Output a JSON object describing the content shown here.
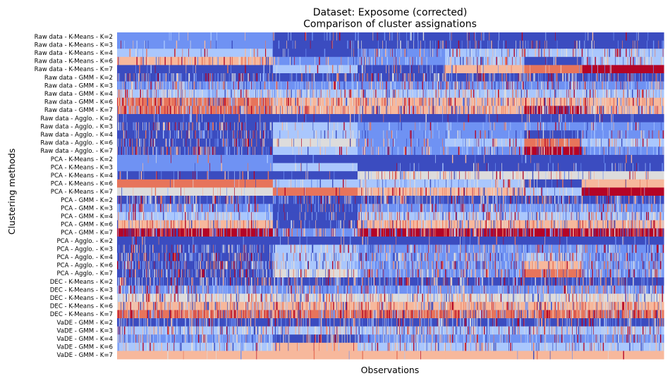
{
  "chart_data": {
    "type": "heatmap",
    "title": "Dataset: Exposome (corrected)",
    "subtitle": "Comparison of cluster assignations",
    "xlabel": "Observations",
    "ylabel": "Clustering methods",
    "colormap": "coolwarm",
    "colors": [
      "#3b4cc0",
      "#6f92f3",
      "#aac7fd",
      "#dddcdc",
      "#f7b89c",
      "#e7745b",
      "#b40426"
    ],
    "row_labels": [
      "Raw data - K-Means - K=2",
      "Raw data - K-Means - K=3",
      "Raw data - K-Means - K=4",
      "Raw data - K-Means - K=6",
      "Raw data - K-Means - K=7",
      "Raw data - GMM - K=2",
      "Raw data - GMM - K=3",
      "Raw data - GMM - K=4",
      "Raw data - GMM - K=6",
      "Raw data - GMM - K=7",
      "Raw data - Agglo. - K=2",
      "Raw data - Agglo. - K=3",
      "Raw data - Agglo. - K=4",
      "Raw data - Agglo. - K=6",
      "Raw data - Agglo. - K=7",
      "PCA - K-Means - K=2",
      "PCA - K-Means - K=3",
      "PCA - K-Means - K=4",
      "PCA - K-Means - K=6",
      "PCA - K-Means - K=7",
      "PCA - GMM - K=2",
      "PCA - GMM - K=3",
      "PCA - GMM - K=4",
      "PCA - GMM - K=6",
      "PCA - GMM - K=7",
      "PCA - Agglo. - K=2",
      "PCA - Agglo. - K=3",
      "PCA - Agglo. - K=4",
      "PCA - Agglo. - K=6",
      "PCA - Agglo. - K=7",
      "DEC - K-Means - K=2",
      "DEC - K-Means - K=3",
      "DEC - K-Means - K=4",
      "DEC - K-Means - K=6",
      "DEC - K-Means - K=7",
      "VaDE - GMM - K=2",
      "VaDE - GMM - K=3",
      "VaDE - GMM - K=4",
      "VaDE - GMM - K=6",
      "VaDE - GMM - K=7"
    ],
    "segment_bounds": [
      0,
      0.285,
      0.44,
      0.6,
      0.745,
      0.85,
      1.0
    ],
    "row_segments": [
      [
        [
          1,
          0.05
        ],
        [
          0,
          0.15
        ],
        [
          0,
          0.1
        ],
        [
          0,
          0.1
        ],
        [
          0,
          0.1
        ],
        [
          0,
          0.1
        ]
      ],
      [
        [
          1,
          0.05
        ],
        [
          0,
          0.1
        ],
        [
          0,
          0.2
        ],
        [
          0,
          0.2
        ],
        [
          0,
          0.2
        ],
        [
          0,
          0.2
        ]
      ],
      [
        [
          2,
          0.1
        ],
        [
          0,
          0.1
        ],
        [
          1,
          0.3
        ],
        [
          2,
          0.35
        ],
        [
          2,
          0.3
        ],
        [
          2,
          0.35
        ]
      ],
      [
        [
          4,
          0.3
        ],
        [
          1,
          0.2
        ],
        [
          1,
          0.3
        ],
        [
          2,
          0.3
        ],
        [
          0,
          0.1
        ],
        [
          2,
          0.35
        ]
      ],
      [
        [
          0,
          0.08
        ],
        [
          2,
          0.15
        ],
        [
          0,
          0.2
        ],
        [
          4,
          0.12
        ],
        [
          5,
          0.05
        ],
        [
          6,
          0.05
        ]
      ],
      [
        [
          0,
          0.4
        ],
        [
          0,
          0.3
        ],
        [
          0,
          0.4
        ],
        [
          0,
          0.4
        ],
        [
          0,
          0.4
        ],
        [
          0,
          0.4
        ]
      ],
      [
        [
          1,
          0.4
        ],
        [
          1,
          0.4
        ],
        [
          1,
          0.4
        ],
        [
          1,
          0.4
        ],
        [
          1,
          0.4
        ],
        [
          1,
          0.4
        ]
      ],
      [
        [
          2,
          0.45
        ],
        [
          2,
          0.45
        ],
        [
          2,
          0.45
        ],
        [
          2,
          0.45
        ],
        [
          2,
          0.45
        ],
        [
          2,
          0.45
        ]
      ],
      [
        [
          5,
          0.45
        ],
        [
          4,
          0.45
        ],
        [
          4,
          0.45
        ],
        [
          4,
          0.45
        ],
        [
          4,
          0.45
        ],
        [
          4,
          0.45
        ]
      ],
      [
        [
          5,
          0.5
        ],
        [
          4,
          0.5
        ],
        [
          4,
          0.5
        ],
        [
          4,
          0.5
        ],
        [
          6,
          0.5
        ],
        [
          4,
          0.5
        ]
      ],
      [
        [
          0,
          0.1
        ],
        [
          0,
          0.05
        ],
        [
          0,
          0.1
        ],
        [
          0,
          0.1
        ],
        [
          0,
          0.1
        ],
        [
          0,
          0.1
        ]
      ],
      [
        [
          0,
          0.35
        ],
        [
          2,
          0.1
        ],
        [
          1,
          0.15
        ],
        [
          1,
          0.15
        ],
        [
          1,
          0.15
        ],
        [
          1,
          0.15
        ]
      ],
      [
        [
          0,
          0.35
        ],
        [
          2,
          0.1
        ],
        [
          1,
          0.2
        ],
        [
          1,
          0.2
        ],
        [
          0,
          0.2
        ],
        [
          1,
          0.2
        ]
      ],
      [
        [
          0,
          0.4
        ],
        [
          3,
          0.1
        ],
        [
          1,
          0.25
        ],
        [
          2,
          0.3
        ],
        [
          5,
          0.2
        ],
        [
          2,
          0.3
        ]
      ],
      [
        [
          0,
          0.45
        ],
        [
          2,
          0.15
        ],
        [
          1,
          0.3
        ],
        [
          1,
          0.3
        ],
        [
          6,
          0.3
        ],
        [
          1,
          0.3
        ]
      ],
      [
        [
          1,
          0.04
        ],
        [
          0,
          0.02
        ],
        [
          0,
          0.04
        ],
        [
          0,
          0.04
        ],
        [
          0,
          0.04
        ],
        [
          0,
          0.04
        ]
      ],
      [
        [
          1,
          0.05
        ],
        [
          2,
          0.05
        ],
        [
          0,
          0.1
        ],
        [
          0,
          0.1
        ],
        [
          0,
          0.1
        ],
        [
          0,
          0.1
        ]
      ],
      [
        [
          0,
          0.15
        ],
        [
          0,
          0.1
        ],
        [
          3,
          0.2
        ],
        [
          3,
          0.2
        ],
        [
          3,
          0.2
        ],
        [
          3,
          0.2
        ]
      ],
      [
        [
          5,
          0.05
        ],
        [
          2,
          0.1
        ],
        [
          2,
          0.2
        ],
        [
          2,
          0.25
        ],
        [
          0,
          0.1
        ],
        [
          4,
          0.1
        ]
      ],
      [
        [
          3,
          0.15
        ],
        [
          5,
          0.1
        ],
        [
          4,
          0.4
        ],
        [
          4,
          0.4
        ],
        [
          2,
          0.15
        ],
        [
          6,
          0.1
        ]
      ],
      [
        [
          0,
          0.4
        ],
        [
          0,
          0.4
        ],
        [
          0,
          0.4
        ],
        [
          0,
          0.4
        ],
        [
          0,
          0.4
        ],
        [
          0,
          0.4
        ]
      ],
      [
        [
          1,
          0.4
        ],
        [
          0,
          0.2
        ],
        [
          1,
          0.4
        ],
        [
          1,
          0.4
        ],
        [
          1,
          0.4
        ],
        [
          1,
          0.4
        ]
      ],
      [
        [
          2,
          0.45
        ],
        [
          0,
          0.2
        ],
        [
          2,
          0.45
        ],
        [
          2,
          0.45
        ],
        [
          2,
          0.45
        ],
        [
          2,
          0.45
        ]
      ],
      [
        [
          4,
          0.35
        ],
        [
          0,
          0.3
        ],
        [
          4,
          0.45
        ],
        [
          4,
          0.45
        ],
        [
          4,
          0.45
        ],
        [
          4,
          0.45
        ]
      ],
      [
        [
          6,
          0.45
        ],
        [
          1,
          0.4
        ],
        [
          6,
          0.45
        ],
        [
          6,
          0.45
        ],
        [
          6,
          0.45
        ],
        [
          6,
          0.45
        ]
      ],
      [
        [
          0,
          0.05
        ],
        [
          0,
          0.05
        ],
        [
          0,
          0.05
        ],
        [
          0,
          0.05
        ],
        [
          0,
          0.05
        ],
        [
          0,
          0.05
        ]
      ],
      [
        [
          0,
          0.4
        ],
        [
          2,
          0.3
        ],
        [
          1,
          0.4
        ],
        [
          1,
          0.4
        ],
        [
          1,
          0.4
        ],
        [
          1,
          0.4
        ]
      ],
      [
        [
          0,
          0.45
        ],
        [
          2,
          0.3
        ],
        [
          1,
          0.45
        ],
        [
          1,
          0.45
        ],
        [
          2,
          0.3
        ],
        [
          1,
          0.45
        ]
      ],
      [
        [
          0,
          0.5
        ],
        [
          2,
          0.35
        ],
        [
          1,
          0.5
        ],
        [
          1,
          0.5
        ],
        [
          4,
          0.3
        ],
        [
          1,
          0.5
        ]
      ],
      [
        [
          0,
          0.5
        ],
        [
          3,
          0.3
        ],
        [
          1,
          0.5
        ],
        [
          1,
          0.5
        ],
        [
          5,
          0.3
        ],
        [
          1,
          0.5
        ]
      ],
      [
        [
          0,
          0.4
        ],
        [
          0,
          0.4
        ],
        [
          0,
          0.4
        ],
        [
          0,
          0.4
        ],
        [
          0,
          0.4
        ],
        [
          0,
          0.4
        ]
      ],
      [
        [
          1,
          0.45
        ],
        [
          1,
          0.45
        ],
        [
          1,
          0.45
        ],
        [
          1,
          0.45
        ],
        [
          1,
          0.45
        ],
        [
          1,
          0.45
        ]
      ],
      [
        [
          3,
          0.45
        ],
        [
          3,
          0.45
        ],
        [
          3,
          0.45
        ],
        [
          3,
          0.45
        ],
        [
          3,
          0.45
        ],
        [
          3,
          0.45
        ]
      ],
      [
        [
          4,
          0.5
        ],
        [
          4,
          0.5
        ],
        [
          4,
          0.5
        ],
        [
          4,
          0.5
        ],
        [
          4,
          0.5
        ],
        [
          4,
          0.5
        ]
      ],
      [
        [
          5,
          0.5
        ],
        [
          5,
          0.5
        ],
        [
          5,
          0.5
        ],
        [
          5,
          0.5
        ],
        [
          5,
          0.5
        ],
        [
          5,
          0.5
        ]
      ],
      [
        [
          0,
          0.4
        ],
        [
          0,
          0.4
        ],
        [
          0,
          0.4
        ],
        [
          0,
          0.4
        ],
        [
          0,
          0.4
        ],
        [
          0,
          0.4
        ]
      ],
      [
        [
          2,
          0.45
        ],
        [
          2,
          0.45
        ],
        [
          2,
          0.45
        ],
        [
          2,
          0.45
        ],
        [
          2,
          0.45
        ],
        [
          2,
          0.45
        ]
      ],
      [
        [
          1,
          0.4
        ],
        [
          0,
          0.3
        ],
        [
          1,
          0.4
        ],
        [
          1,
          0.4
        ],
        [
          1,
          0.4
        ],
        [
          1,
          0.4
        ]
      ],
      [
        [
          2,
          0.25
        ],
        [
          4,
          0.2
        ],
        [
          2,
          0.3
        ],
        [
          2,
          0.3
        ],
        [
          2,
          0.3
        ],
        [
          2,
          0.3
        ]
      ],
      [
        [
          4,
          0.02
        ],
        [
          4,
          0.02
        ],
        [
          4,
          0.02
        ],
        [
          4,
          0.02
        ],
        [
          4,
          0.02
        ],
        [
          4,
          0.02
        ]
      ]
    ]
  }
}
